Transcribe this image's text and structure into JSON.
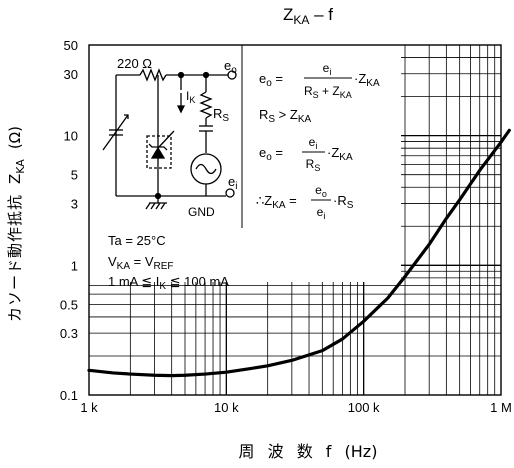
{
  "chart_data": {
    "type": "line",
    "title": "Z",
    "title_sub": "KA",
    "title_tail": " – f",
    "xlabel": "周 波 数 f (Hz)",
    "ylabel_jp": "カソード動作抵抗",
    "ylabel_sym": "Z",
    "ylabel_sym_sub": "KA",
    "ylabel_unit": "(Ω)",
    "x_scale": "log",
    "y_scale": "log",
    "xlim": [
      1000,
      1000000
    ],
    "ylim": [
      0.1,
      50
    ],
    "x_ticks": [
      {
        "value": 1000,
        "label": "1 k"
      },
      {
        "value": 10000,
        "label": "10 k"
      },
      {
        "value": 100000,
        "label": "100 k"
      },
      {
        "value": 1000000,
        "label": "1 M"
      }
    ],
    "y_ticks": [
      {
        "value": 50,
        "label": "50"
      },
      {
        "value": 30,
        "label": "30"
      },
      {
        "value": 10,
        "label": "10"
      },
      {
        "value": 5,
        "label": "5"
      },
      {
        "value": 3,
        "label": "3"
      },
      {
        "value": 1,
        "label": "1"
      },
      {
        "value": 0.5,
        "label": "0.5"
      },
      {
        "value": 0.3,
        "label": "0.3"
      },
      {
        "value": 0.1,
        "label": "0.1"
      }
    ],
    "series": [
      {
        "x": [
          1000,
          1500,
          2000,
          3000,
          4000,
          5000,
          7000,
          10000,
          15000,
          20000,
          30000,
          50000,
          70000,
          100000,
          150000,
          200000,
          300000,
          400000,
          500000,
          700000,
          1000000,
          1150000
        ],
        "y": [
          0.155,
          0.148,
          0.145,
          0.142,
          0.141,
          0.142,
          0.145,
          0.15,
          0.16,
          0.168,
          0.185,
          0.22,
          0.27,
          0.37,
          0.56,
          0.82,
          1.45,
          2.3,
          3.2,
          5.4,
          8.9,
          11
        ]
      }
    ],
    "conditions": {
      "ta": "Ta = 25°C",
      "vka_main": "V",
      "vka_sub": "KA",
      "vka_eq": " = V",
      "vref_sub": "REF",
      "ik_pre": "1 mA ≦ I",
      "ik_sub": "K",
      "ik_post": " ≦ 100 mA"
    },
    "circuit": {
      "r1_label": "220 Ω",
      "eo_label": "e",
      "eo_sub": "o",
      "ei_label": "e",
      "ei_sub": "i",
      "ik_label": "I",
      "ik_sub": "K",
      "rs_label": "R",
      "rs_sub": "S",
      "gnd_label": "GND"
    },
    "equations": {
      "eq1_lhs": "e",
      "eq1_lhs_sub": "o",
      "eq1_num": "e",
      "eq1_num_sub": "i",
      "eq1_den_a": "R",
      "eq1_den_a_sub": "S",
      "eq1_den_plus": " + Z",
      "eq1_den_b_sub": "KA",
      "eq1_tail": "·Z",
      "eq1_tail_sub": "KA",
      "cond_a": "R",
      "cond_a_sub": "S",
      "cond_op": " > Z",
      "cond_b_sub": "KA",
      "eq2_lhs": "e",
      "eq2_lhs_sub": "o",
      "eq2_num": "e",
      "eq2_num_sub": "i",
      "eq2_den": "R",
      "eq2_den_sub": "S",
      "eq2_tail": "·Z",
      "eq2_tail_sub": "KA",
      "eq3_pre": "∴Z",
      "eq3_pre_sub": "KA",
      "eq3_num": "e",
      "eq3_num_sub": "o",
      "eq3_den": "e",
      "eq3_den_sub": "i",
      "eq3_tail": "·R",
      "eq3_tail_sub": "S"
    },
    "grid": true,
    "legend": "none",
    "colors": {
      "line": "#000000",
      "grid": "#000000"
    }
  }
}
